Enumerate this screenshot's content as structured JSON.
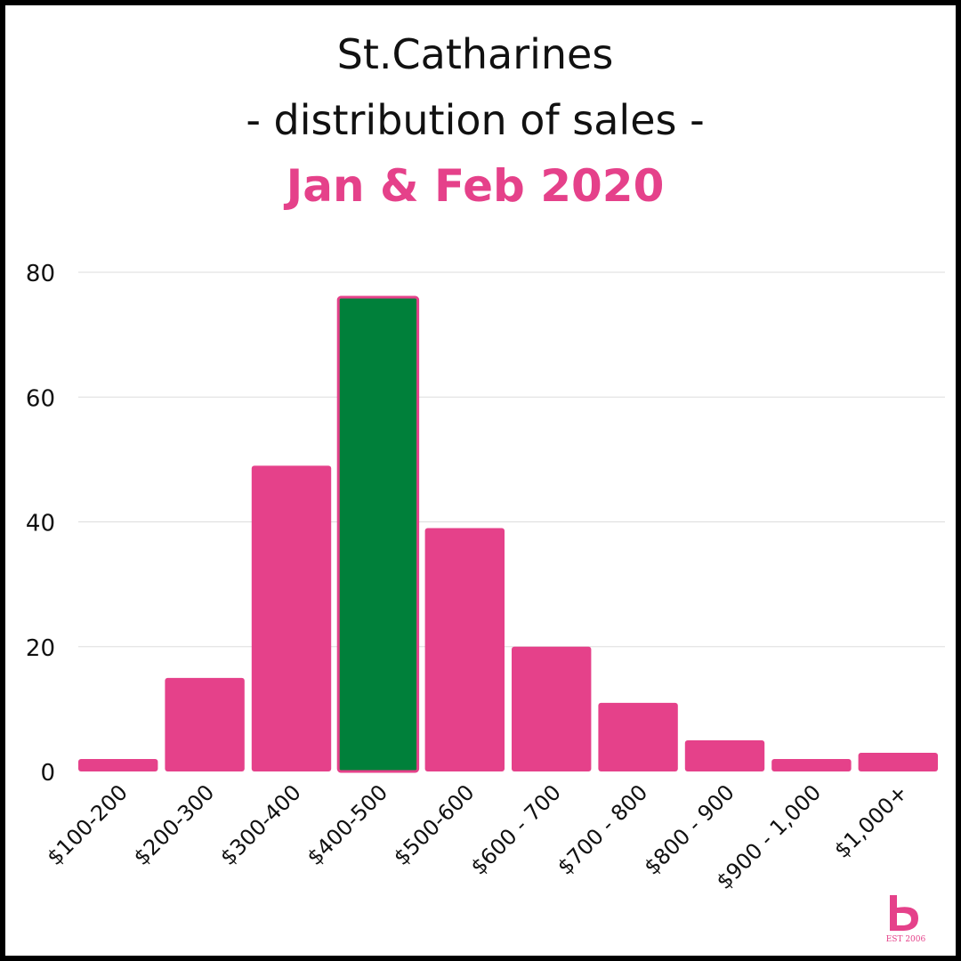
{
  "colors": {
    "bar": "#e5418a",
    "highlight": "#00803a",
    "grid": "#dddddd",
    "title_accent": "#e5418a",
    "text": "#111111"
  },
  "title": {
    "line1": "St.Catharines",
    "line2": "- distribution of sales -",
    "line3": "Jan & Feb 2020"
  },
  "logo": {
    "text": "EST 2006"
  },
  "chart_data": {
    "type": "bar",
    "categories": [
      "$100-200",
      "$200-300",
      "$300-400",
      "$400-500",
      "$500-600",
      "$600 - 700",
      "$700 - 800",
      "$800 - 900",
      "$900 - 1,000",
      "$1,000+"
    ],
    "values": [
      2,
      15,
      49,
      76,
      39,
      20,
      11,
      5,
      2,
      3
    ],
    "highlight_index": 3,
    "ylim": [
      0,
      80
    ],
    "yticks": [
      0,
      20,
      40,
      60,
      80
    ],
    "grid": true,
    "xlabel": "",
    "ylabel": ""
  }
}
